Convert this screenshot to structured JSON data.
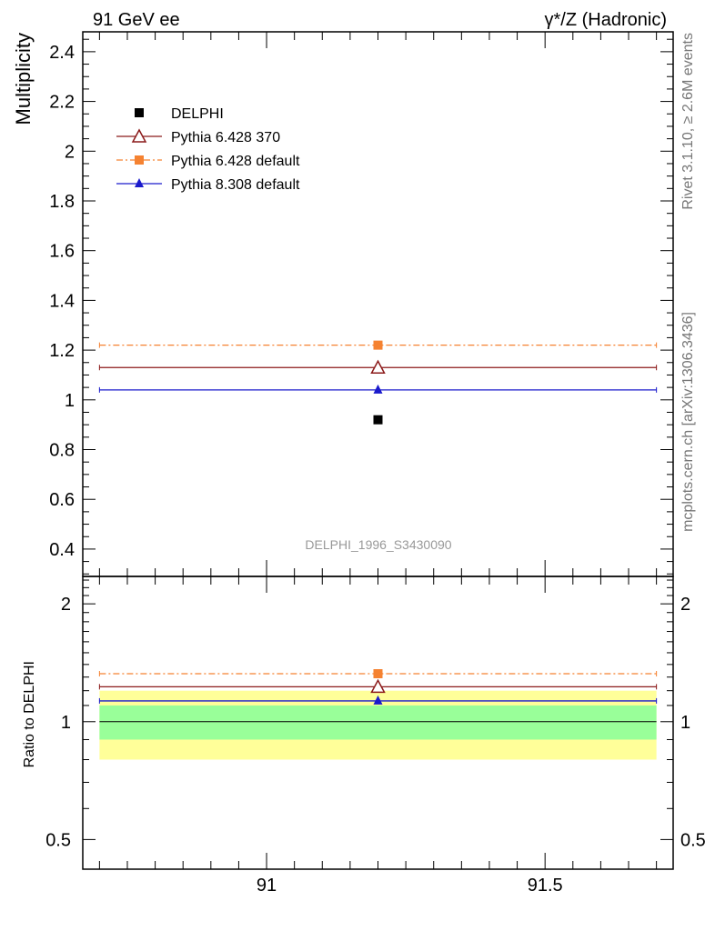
{
  "header": {
    "left_title": "91 GeV ee",
    "right_title": "γ*/Z (Hadronic)"
  },
  "side_text": {
    "rivet": "Rivet 3.1.10, ≥ 2.6M events",
    "mcplots": "mcplots.cern.ch [arXiv:1306.3436]"
  },
  "analysis_label": "DELPHI_1996_S3430090",
  "chart_data": [
    {
      "type": "scatter",
      "ylabel": "Multiplicity",
      "x_range": [
        90.67,
        91.73
      ],
      "ylim": [
        0.29,
        2.48
      ],
      "yticks": [
        0.4,
        0.6,
        0.8,
        1,
        1.2,
        1.4,
        1.6,
        1.8,
        2,
        2.2,
        2.4
      ],
      "ytick_labels": [
        "0.4",
        "0.6",
        "0.8",
        "1",
        "1.2",
        "1.4",
        "1.6",
        "1.8",
        "2",
        "2.2",
        "2.4"
      ],
      "legend_position": "top-left",
      "series": [
        {
          "name": "DELPHI",
          "x": 91.2,
          "y": 0.92,
          "x_low": 90.7,
          "x_high": 91.7,
          "color": "#000000",
          "marker": "square",
          "line": "none"
        },
        {
          "name": "Pythia 6.428 370",
          "x": 91.2,
          "y": 1.13,
          "x_low": 90.7,
          "x_high": 91.7,
          "color": "#8b1a1a",
          "marker": "open-triangle",
          "line": "solid"
        },
        {
          "name": "Pythia 6.428 default",
          "x": 91.2,
          "y": 1.22,
          "x_low": 90.7,
          "x_high": 91.7,
          "color": "#f58231",
          "marker": "square",
          "line": "dashdot"
        },
        {
          "name": "Pythia 8.308 default",
          "x": 91.2,
          "y": 1.04,
          "x_low": 90.7,
          "x_high": 91.7,
          "color": "#1a1acc",
          "marker": "triangle",
          "line": "solid"
        }
      ]
    },
    {
      "type": "scatter",
      "ylabel": "Ratio to DELPHI",
      "scale": "log",
      "ylim": [
        0.42,
        2.35
      ],
      "yticks": [
        0.5,
        1,
        2
      ],
      "ytick_labels": [
        "0.5",
        "1",
        "2"
      ],
      "xticks": [
        91,
        91.5
      ],
      "xtick_labels": [
        "91",
        "91.5"
      ],
      "bands": [
        {
          "low": 0.8,
          "high": 1.2,
          "color": "#ffff99"
        },
        {
          "low": 0.9,
          "high": 1.1,
          "color": "#99ff99"
        }
      ],
      "reference": 1.0,
      "series": [
        {
          "name": "Pythia 6.428 370",
          "y": 1.228
        },
        {
          "name": "Pythia 6.428 default",
          "y": 1.326
        },
        {
          "name": "Pythia 8.308 default",
          "y": 1.13
        }
      ]
    }
  ]
}
